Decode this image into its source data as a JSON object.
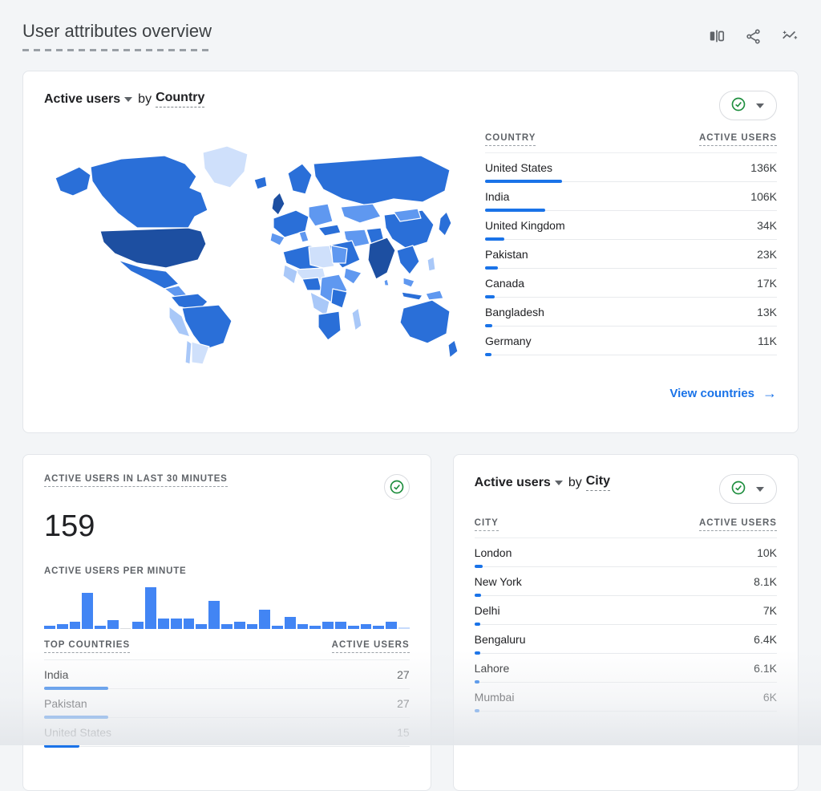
{
  "theme": {
    "accent": "#1a73e8",
    "bar": "#4285f4",
    "check_green": "#1e8e3e",
    "map_darkest": "#1d4fa1",
    "map_dark": "#2a6fd8",
    "map_mid": "#5f98f0",
    "map_light": "#a9c8f8",
    "map_lightest": "#cfe0fb"
  },
  "header": {
    "title": "User attributes overview",
    "icons": [
      "comparison-icon",
      "share-icon",
      "insights-icon"
    ]
  },
  "country_card": {
    "metric": "Active users",
    "by": "by",
    "dimension": "Country",
    "table": {
      "col1": "COUNTRY",
      "col2": "ACTIVE USERS",
      "rows": [
        {
          "label": "United States",
          "value": "136K",
          "bar": 96
        },
        {
          "label": "India",
          "value": "106K",
          "bar": 75
        },
        {
          "label": "United Kingdom",
          "value": "34K",
          "bar": 24
        },
        {
          "label": "Pakistan",
          "value": "23K",
          "bar": 16
        },
        {
          "label": "Canada",
          "value": "17K",
          "bar": 12
        },
        {
          "label": "Bangladesh",
          "value": "13K",
          "bar": 9
        },
        {
          "label": "Germany",
          "value": "11K",
          "bar": 8
        }
      ]
    },
    "footer_link": "View countries"
  },
  "realtime_card": {
    "label": "ACTIVE USERS IN LAST 30 MINUTES",
    "count": "159",
    "chart_label": "ACTIVE USERS PER MINUTE",
    "chart": {
      "type": "bar",
      "values": [
        2,
        3,
        4,
        21,
        2,
        5,
        0,
        4,
        24,
        6,
        6,
        6,
        3,
        16,
        3,
        4,
        3,
        11,
        2,
        7,
        3,
        2,
        4,
        4,
        2,
        3,
        2,
        4,
        1
      ]
    },
    "table": {
      "col1": "TOP COUNTRIES",
      "col2": "ACTIVE USERS",
      "rows": [
        {
          "label": "India",
          "value": "27",
          "bar": 80
        },
        {
          "label": "Pakistan",
          "value": "27",
          "bar": 80
        },
        {
          "label": "United States",
          "value": "15",
          "bar": 44
        }
      ]
    }
  },
  "city_card": {
    "metric": "Active users",
    "by": "by",
    "dimension": "City",
    "table": {
      "col1": "CITY",
      "col2": "ACTIVE USERS",
      "rows": [
        {
          "label": "London",
          "value": "10K",
          "bar": 10
        },
        {
          "label": "New York",
          "value": "8.1K",
          "bar": 8
        },
        {
          "label": "Delhi",
          "value": "7K",
          "bar": 7
        },
        {
          "label": "Bengaluru",
          "value": "6.4K",
          "bar": 7
        },
        {
          "label": "Lahore",
          "value": "6.1K",
          "bar": 6
        },
        {
          "label": "Mumbai",
          "value": "6K",
          "bar": 6
        }
      ]
    }
  }
}
